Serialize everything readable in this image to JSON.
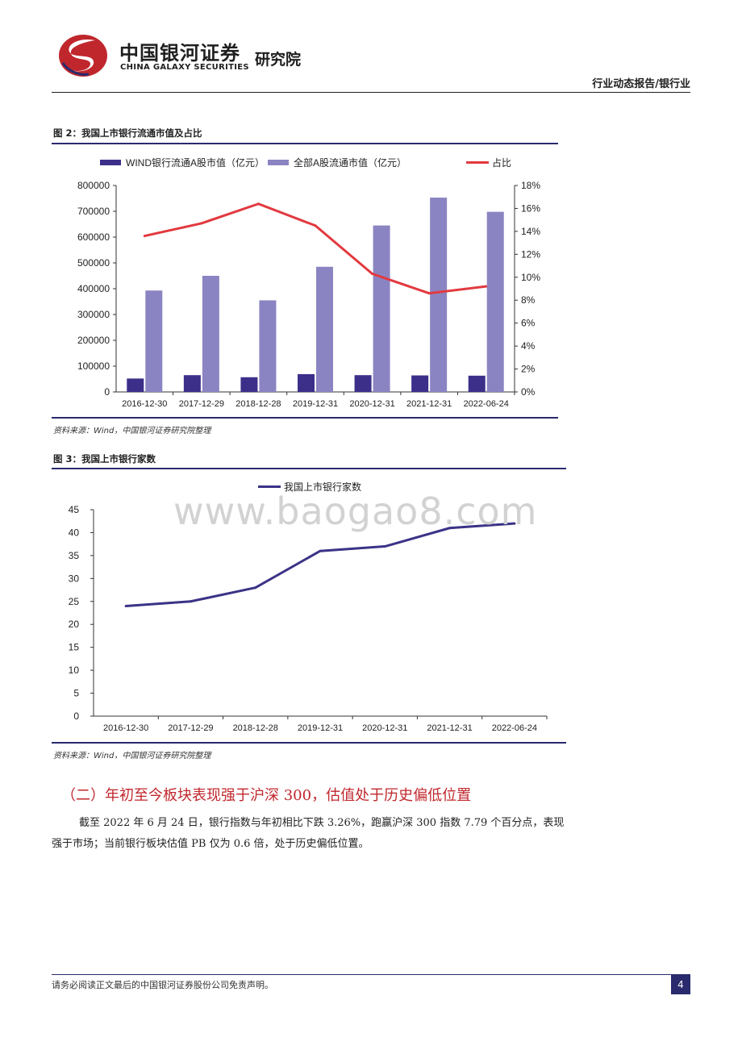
{
  "header": {
    "logo_cn": "中国银河证券",
    "logo_en": "CHINA GALAXY SECURITIES",
    "logo_institute": "研究院",
    "category": "行业动态报告/银行业"
  },
  "figure2": {
    "title": "图 2：我国上市银行流通市值及占比",
    "source": "资料来源：Wind，中国银河证券研究院整理"
  },
  "figure3": {
    "title": "图 3：我国上市银行家数",
    "source": "资料来源：Wind，中国银河证券研究院整理"
  },
  "watermark": "www.baogao8.com",
  "section": {
    "heading": "（二）年初至今板块表现强于沪深 300，估值处于历史偏低位置",
    "paragraph": "截至 2022 年 6 月 24 日，银行指数与年初相比下跌 3.26%，跑赢沪深 300 指数 7.79 个百分点，表现强于市场；当前银行板块估值 PB 仅为 0.6 倍，处于历史偏低位置。"
  },
  "footer": {
    "disclaimer": "请务必阅读正文最后的中国银河证券股份公司免责声明。",
    "page": "4"
  },
  "colors": {
    "dark_bar": "#3b2f8a",
    "light_bar": "#8b84c2",
    "ratio_line": "#e2393f",
    "count_line": "#3b3387",
    "accent_red": "#c0272d",
    "rule_navy": "#2a2a6e"
  },
  "chart_data": [
    {
      "type": "bar",
      "categories": [
        "2016-12-30",
        "2017-12-29",
        "2018-12-28",
        "2019-12-31",
        "2020-12-31",
        "2021-12-31",
        "2022-06-24"
      ],
      "series": [
        {
          "name": "WIND银行流通A股市值（亿元）",
          "type": "bar",
          "axis": "left",
          "values": [
            52000,
            65000,
            57000,
            69000,
            65000,
            64000,
            63000
          ]
        },
        {
          "name": "全部A股流通市值（亿元）",
          "type": "bar",
          "axis": "left",
          "values": [
            393000,
            450000,
            355000,
            485000,
            645000,
            753000,
            698000
          ]
        },
        {
          "name": "占比",
          "type": "line",
          "axis": "right",
          "values": [
            13.6,
            14.7,
            16.4,
            14.5,
            10.3,
            8.6,
            9.2
          ]
        }
      ],
      "ylim": [
        0,
        800000
      ],
      "yticks": [
        "0",
        "100000",
        "200000",
        "300000",
        "400000",
        "500000",
        "600000",
        "700000",
        "800000"
      ],
      "y2lim": [
        0,
        18
      ],
      "y2ticks": [
        "0%",
        "2%",
        "4%",
        "6%",
        "8%",
        "10%",
        "12%",
        "14%",
        "16%",
        "18%"
      ],
      "legend": "top",
      "grid": false
    },
    {
      "type": "line",
      "categories": [
        "2016-12-30",
        "2017-12-29",
        "2018-12-28",
        "2019-12-31",
        "2020-12-31",
        "2021-12-31",
        "2022-06-24"
      ],
      "series": [
        {
          "name": "我国上市银行家数",
          "values": [
            24,
            25,
            28,
            36,
            37,
            41,
            42
          ]
        }
      ],
      "ylim": [
        0,
        45
      ],
      "yticks": [
        "0",
        "5",
        "10",
        "15",
        "20",
        "25",
        "30",
        "35",
        "40",
        "45"
      ],
      "legend": "top",
      "grid": false
    }
  ]
}
